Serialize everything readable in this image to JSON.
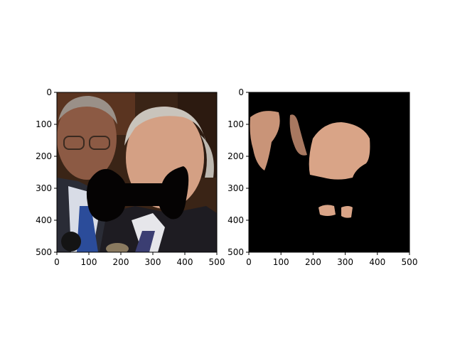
{
  "chart_data": [
    {
      "type": "image",
      "title": "",
      "xlabel": "",
      "ylabel": "",
      "xlim": [
        0,
        500
      ],
      "ylim": [
        500,
        0
      ],
      "xticks": [
        0,
        100,
        200,
        300,
        400,
        500
      ],
      "yticks": [
        0,
        100,
        200,
        300,
        400,
        500
      ],
      "grid": false,
      "content": "photo of two men with a black bow-tie shaped occlusion over the face region"
    },
    {
      "type": "image",
      "title": "",
      "xlabel": "",
      "ylabel": "",
      "xlim": [
        0,
        500
      ],
      "ylim": [
        500,
        0
      ],
      "xticks": [
        0,
        100,
        200,
        300,
        400,
        500
      ],
      "yticks": [
        0,
        100,
        200,
        300,
        400,
        500
      ],
      "grid": false,
      "content": "segmentation mask showing skin regions on black background"
    }
  ],
  "colors": {
    "mask_background": "#000000",
    "skin": "#d9a487",
    "occluder": "#050303"
  }
}
